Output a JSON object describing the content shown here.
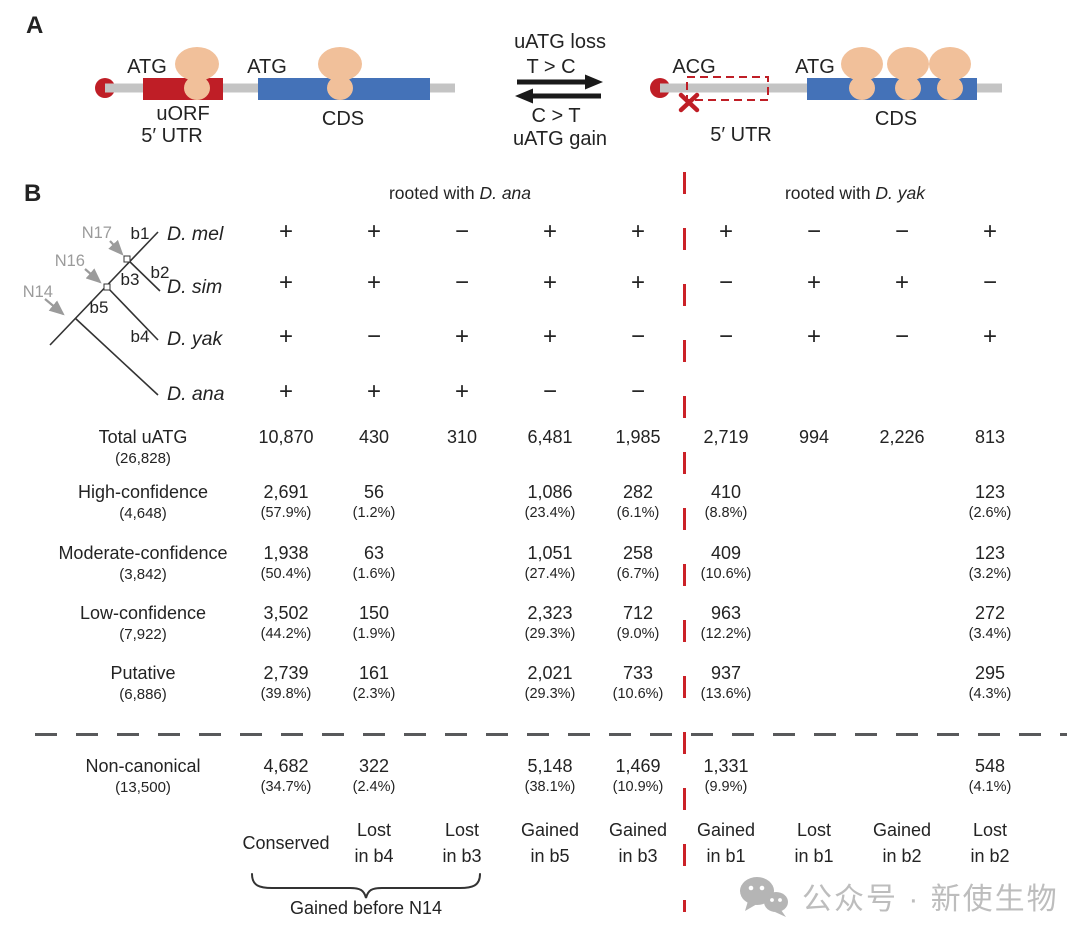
{
  "panelA": {
    "label": "A",
    "left": {
      "atg_uorf": "ATG",
      "atg_cds": "ATG",
      "uorf": "uORF",
      "utr5": "5′ UTR",
      "cds": "CDS"
    },
    "middle": {
      "loss_label": "uATG loss",
      "loss_mut": "T > C",
      "gain_mut": "C > T",
      "gain_label": "uATG gain"
    },
    "right": {
      "acg": "ACG",
      "atg": "ATG",
      "utr5": "5′ UTR",
      "cds": "CDS"
    }
  },
  "panelB": {
    "label": "B",
    "tree": {
      "node_labels": [
        "N17",
        "N16",
        "N14"
      ],
      "branch_labels": [
        "b1",
        "b2",
        "b3",
        "b4",
        "b5"
      ],
      "species": [
        "D. mel",
        "D. sim",
        "D. yak",
        "D. ana"
      ]
    },
    "headers": {
      "left_prefix": "rooted with ",
      "left_species": "D. ana",
      "right_prefix": "rooted with ",
      "right_species": "D. yak"
    },
    "sign_matrix": {
      "rows": [
        {
          "species": "D. mel",
          "signs": [
            "+",
            "+",
            "−",
            "+",
            "+",
            "+",
            "−",
            "−",
            "+"
          ]
        },
        {
          "species": "D. sim",
          "signs": [
            "+",
            "+",
            "−",
            "+",
            "+",
            "−",
            "+",
            "+",
            "−"
          ]
        },
        {
          "species": "D. yak",
          "signs": [
            "+",
            "−",
            "+",
            "+",
            "−",
            "−",
            "+",
            "−",
            "+"
          ]
        },
        {
          "species": "D. ana",
          "signs": [
            "+",
            "+",
            "+",
            "−",
            "−",
            "",
            "",
            "",
            ""
          ]
        }
      ]
    },
    "table": {
      "rows": [
        {
          "name": "Total uATG",
          "total": "(26,828)",
          "cells": [
            {
              "v": "10,870"
            },
            {
              "v": "430"
            },
            {
              "v": "310"
            },
            {
              "v": "6,481"
            },
            {
              "v": "1,985"
            },
            {
              "v": "2,719"
            },
            {
              "v": "994"
            },
            {
              "v": "2,226"
            },
            {
              "v": "813"
            }
          ]
        },
        {
          "name": "High-confidence",
          "total": "(4,648)",
          "cells": [
            {
              "v": "2,691",
              "p": "(57.9%)"
            },
            {
              "v": "56",
              "p": "(1.2%)"
            },
            {},
            {
              "v": "1,086",
              "p": "(23.4%)"
            },
            {
              "v": "282",
              "p": "(6.1%)"
            },
            {
              "v": "410",
              "p": "(8.8%)"
            },
            {},
            {},
            {
              "v": "123",
              "p": "(2.6%)"
            }
          ]
        },
        {
          "name": "Moderate-confidence",
          "total": "(3,842)",
          "cells": [
            {
              "v": "1,938",
              "p": "(50.4%)"
            },
            {
              "v": "63",
              "p": "(1.6%)"
            },
            {},
            {
              "v": "1,051",
              "p": "(27.4%)"
            },
            {
              "v": "258",
              "p": "(6.7%)"
            },
            {
              "v": "409",
              "p": "(10.6%)"
            },
            {},
            {},
            {
              "v": "123",
              "p": "(3.2%)"
            }
          ]
        },
        {
          "name": "Low-confidence",
          "total": "(7,922)",
          "cells": [
            {
              "v": "3,502",
              "p": "(44.2%)"
            },
            {
              "v": "150",
              "p": "(1.9%)"
            },
            {},
            {
              "v": "2,323",
              "p": "(29.3%)"
            },
            {
              "v": "712",
              "p": "(9.0%)"
            },
            {
              "v": "963",
              "p": "(12.2%)"
            },
            {},
            {},
            {
              "v": "272",
              "p": "(3.4%)"
            }
          ]
        },
        {
          "name": "Putative",
          "total": "(6,886)",
          "cells": [
            {
              "v": "2,739",
              "p": "(39.8%)"
            },
            {
              "v": "161",
              "p": "(2.3%)"
            },
            {},
            {
              "v": "2,021",
              "p": "(29.3%)"
            },
            {
              "v": "733",
              "p": "(10.6%)"
            },
            {
              "v": "937",
              "p": "(13.6%)"
            },
            {},
            {},
            {
              "v": "295",
              "p": "(4.3%)"
            }
          ]
        },
        {
          "name": "Non-canonical",
          "total": "(13,500)",
          "cells": [
            {
              "v": "4,682",
              "p": "(34.7%)"
            },
            {
              "v": "322",
              "p": "(2.4%)"
            },
            {},
            {
              "v": "5,148",
              "p": "(38.1%)"
            },
            {
              "v": "1,469",
              "p": "(10.9%)"
            },
            {
              "v": "1,331",
              "p": "(9.9%)"
            },
            {},
            {},
            {
              "v": "548",
              "p": "(4.1%)"
            }
          ]
        }
      ],
      "footer": [
        {
          "l1": "Conserved",
          "l2": ""
        },
        {
          "l1": "Lost",
          "l2": "in b4"
        },
        {
          "l1": "Lost",
          "l2": "in b3"
        },
        {
          "l1": "Gained",
          "l2": "in b5"
        },
        {
          "l1": "Gained",
          "l2": "in b3"
        },
        {
          "l1": "Gained",
          "l2": "in b1"
        },
        {
          "l1": "Lost",
          "l2": "in b1"
        },
        {
          "l1": "Gained",
          "l2": "in b2"
        },
        {
          "l1": "Lost",
          "l2": "in b2"
        }
      ]
    },
    "brace_label": "Gained before N14"
  },
  "watermark": {
    "icon": "wechat-icon",
    "text": "公众号 · 新使生物"
  },
  "colors": {
    "uorf_red": "#bf1e26",
    "cds_blue": "#4472b8",
    "ribosome_peach": "#f1c09a",
    "utr_gray": "#c4c4c4",
    "divider_red": "#cb2128",
    "dash_gray": "#58595b",
    "tree_gray": "#9b9b9b",
    "ink": "#232323",
    "watermark_gray": "#bdbdbd"
  }
}
